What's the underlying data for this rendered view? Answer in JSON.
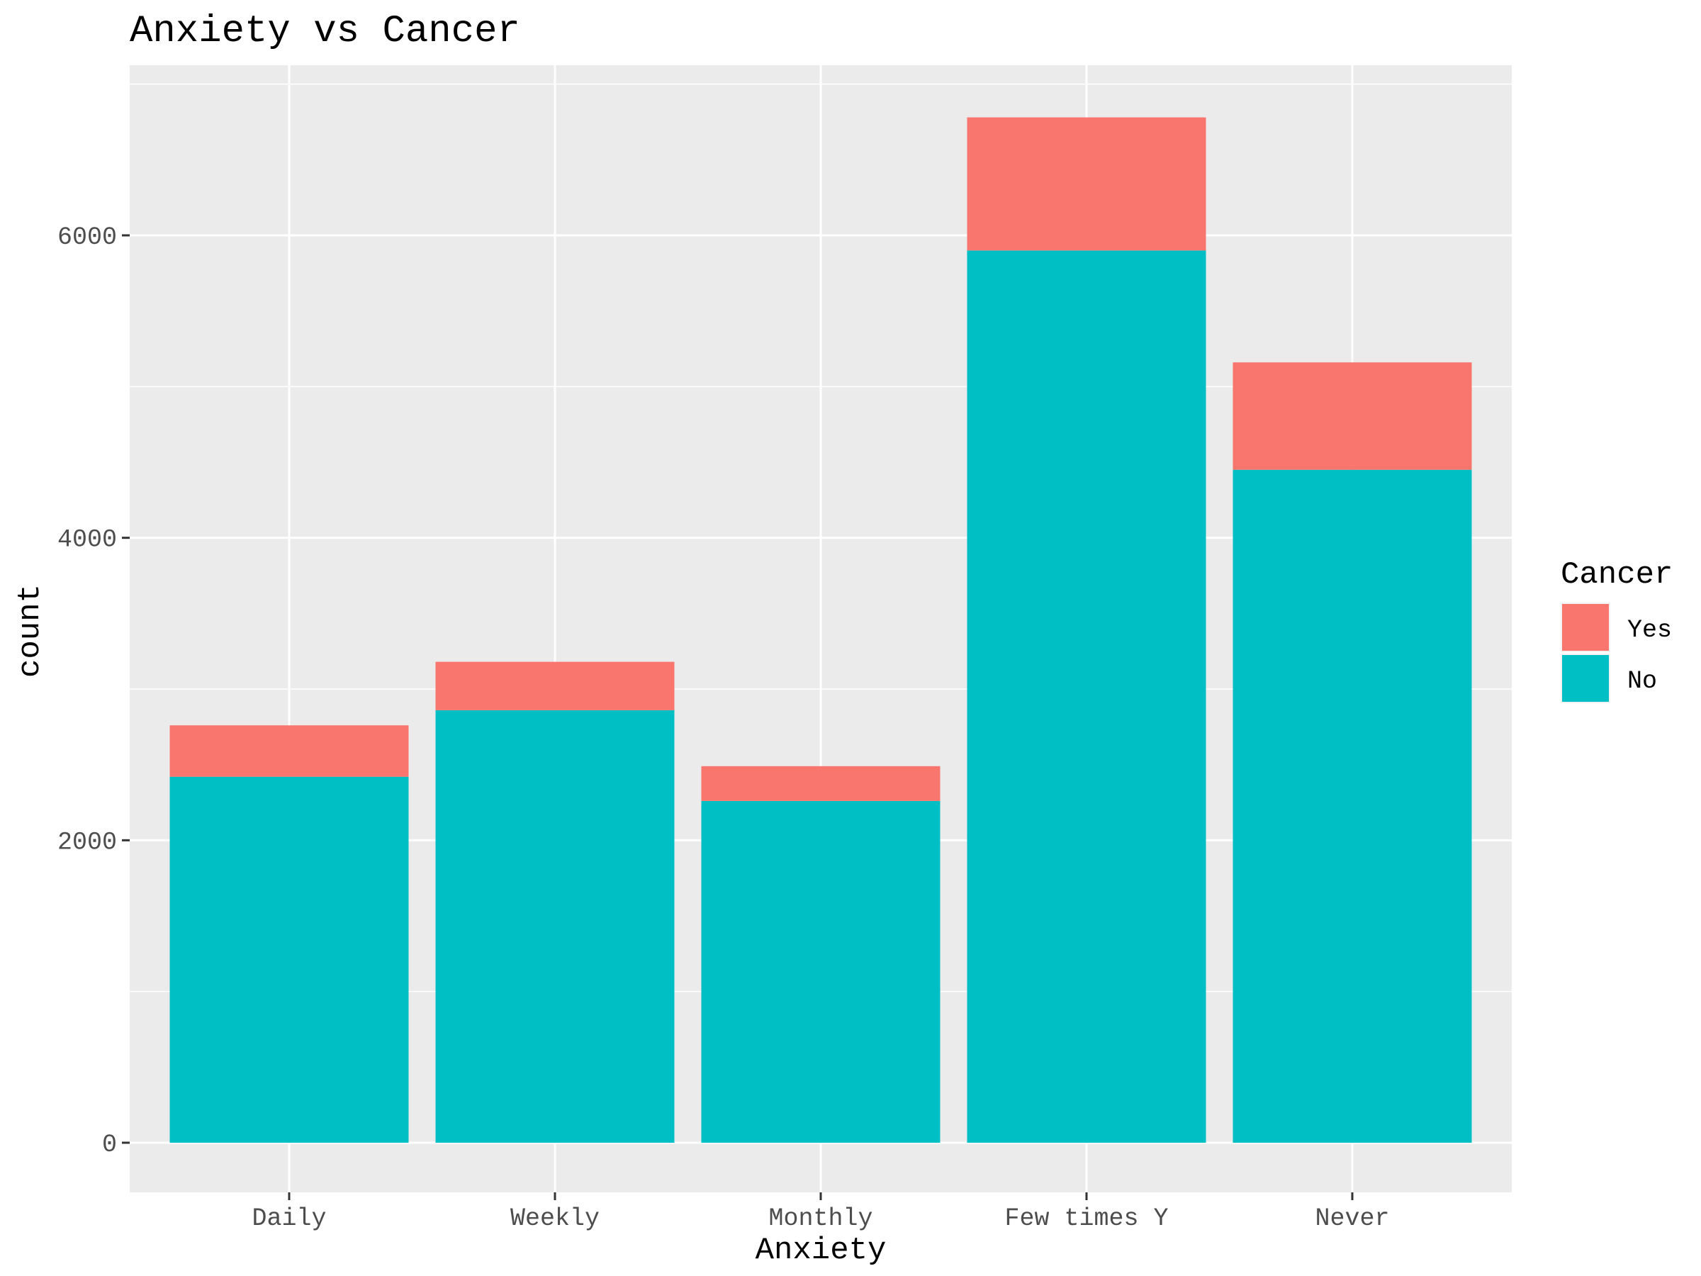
{
  "chart_data": {
    "type": "bar",
    "stacked": true,
    "title": "Anxiety vs Cancer",
    "xlabel": "Anxiety",
    "ylabel": "count",
    "categories": [
      "Daily",
      "Weekly",
      "Monthly",
      "Few times Y",
      "Never"
    ],
    "series": [
      {
        "name": "No",
        "color": "#00BFC4",
        "values": [
          2420,
          2860,
          2260,
          5900,
          4450
        ]
      },
      {
        "name": "Yes",
        "color": "#F8766D",
        "values": [
          340,
          320,
          230,
          880,
          710
        ]
      }
    ],
    "ylim": [
      0,
      7000
    ],
    "yticks": [
      0,
      2000,
      4000,
      6000
    ],
    "yticks_minor": [
      1000,
      3000,
      5000,
      7000
    ],
    "grid": true,
    "panel_background": "#EBEBEB",
    "legend": {
      "title": "Cancer",
      "placement": "right",
      "entries": [
        {
          "label": "Yes",
          "color": "#F8766D"
        },
        {
          "label": "No",
          "color": "#00BFC4"
        }
      ]
    }
  }
}
